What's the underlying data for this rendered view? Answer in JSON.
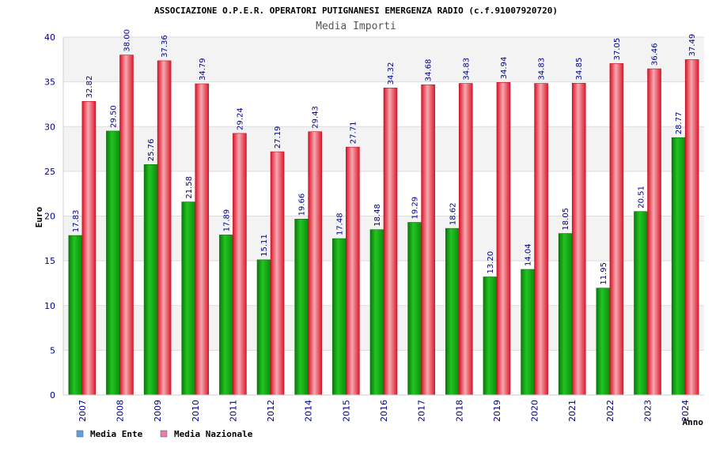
{
  "chart_data": {
    "type": "bar",
    "title": "ASSOCIAZIONE O.P.E.R. OPERATORI PUTIGNANESI EMERGENZA RADIO (c.f.91007920720)",
    "subtitle": "Media Importi",
    "xlabel": "Anno",
    "ylabel": "Euro",
    "ylim": [
      0,
      40
    ],
    "yticks": [
      0,
      5,
      10,
      15,
      20,
      25,
      30,
      35,
      40
    ],
    "grid": true,
    "legend_position": "bottom-left",
    "categories": [
      "2007",
      "2008",
      "2009",
      "2010",
      "2011",
      "2012",
      "2014",
      "2015",
      "2016",
      "2017",
      "2018",
      "2019",
      "2020",
      "2021",
      "2022",
      "2023",
      "2024"
    ],
    "series": [
      {
        "name": "Media Ente",
        "color": "#1fb81f",
        "legend_color": "#5f9fe8",
        "values": [
          17.83,
          29.5,
          25.76,
          21.58,
          17.89,
          15.11,
          19.66,
          17.48,
          18.48,
          19.29,
          18.62,
          13.2,
          14.04,
          18.05,
          11.95,
          20.51,
          28.77
        ],
        "labels": [
          "17.83",
          "29.50",
          "25.76",
          "21.58",
          "17.89",
          "15.11",
          "19.66",
          "17.48",
          "18.48",
          "19.29",
          "18.62",
          "13.20",
          "14.04",
          "18.05",
          "11.95",
          "20.51",
          "28.77"
        ]
      },
      {
        "name": "Media Nazionale",
        "color": "#ee2a3c",
        "legend_color": "#e080b0",
        "values": [
          32.82,
          38.0,
          37.36,
          34.79,
          29.24,
          27.19,
          29.43,
          27.71,
          34.32,
          34.68,
          34.83,
          34.94,
          34.83,
          34.85,
          37.05,
          36.46,
          37.49
        ],
        "labels": [
          "32.82",
          "38.00",
          "37.36",
          "34.79",
          "29.24",
          "27.19",
          "29.43",
          "27.71",
          "34.32",
          "34.68",
          "34.83",
          "34.94",
          "34.83",
          "34.85",
          "37.05",
          "36.46",
          "37.49"
        ]
      }
    ]
  }
}
